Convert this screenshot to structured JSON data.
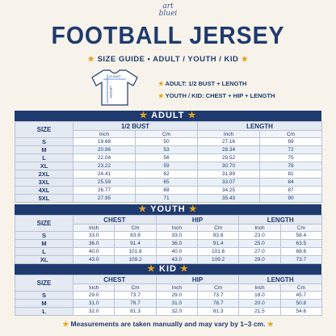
{
  "header": {
    "logo_top": "art",
    "logo_bottom": "bluei",
    "title": "FOOTBALL JERSEY",
    "subtitle": "SIZE GUIDE • ADULT / YOUTH / KID"
  },
  "diagram": {
    "bust_label": "1/2 BUST",
    "length_label": "LENGTH",
    "notes": [
      "ADULT: 1/2 BUST + LENGTH",
      "YOUTH / KID: CHEST + HIP + LENGTH"
    ]
  },
  "tables": [
    {
      "title": "ADULT",
      "size_header": "SIZE",
      "groups": [
        "1/2 BUST",
        "LENGTH"
      ],
      "units": [
        "Inch",
        "Cm"
      ],
      "rows": [
        [
          "S",
          "19.68",
          "50",
          "27.16",
          "69"
        ],
        [
          "M",
          "20.86",
          "53",
          "28.34",
          "72"
        ],
        [
          "L",
          "22.04",
          "56",
          "29.52",
          "75"
        ],
        [
          "XL",
          "23.22",
          "59",
          "30.70",
          "78"
        ],
        [
          "2XL",
          "24.41",
          "62",
          "31.89",
          "81"
        ],
        [
          "3XL",
          "25.59",
          "65",
          "33.07",
          "84"
        ],
        [
          "4XL",
          "26.77",
          "68",
          "34.25",
          "87"
        ],
        [
          "5XL",
          "27.95",
          "71",
          "35.43",
          "90"
        ]
      ]
    },
    {
      "title": "YOUTH",
      "size_header": "SIZE",
      "groups": [
        "CHEST",
        "HIP",
        "LENGTH"
      ],
      "units": [
        "Inch",
        "Cm"
      ],
      "rows": [
        [
          "S",
          "33.0",
          "83.8",
          "33.0",
          "83.8",
          "23.0",
          "58.4"
        ],
        [
          "M",
          "36.0",
          "91.4",
          "36.0",
          "91.4",
          "25.0",
          "63.5"
        ],
        [
          "L",
          "40.0",
          "101.6",
          "40.0",
          "101.6",
          "27.0",
          "68.6"
        ],
        [
          "XL",
          "43.0",
          "109.2",
          "43.0",
          "109.2",
          "29.0",
          "73.7"
        ]
      ]
    },
    {
      "title": "KID",
      "size_header": "SIZE",
      "groups": [
        "CHEST",
        "HIP",
        "LENGTH"
      ],
      "units": [
        "Inch",
        "Cm"
      ],
      "rows": [
        [
          "S",
          "29.0",
          "73.7",
          "29.0",
          "73.7",
          "18.0",
          "45.7"
        ],
        [
          "M",
          "31.0",
          "78.7",
          "31.0",
          "78.7",
          "20.0",
          "50.8"
        ],
        [
          "L",
          "32.0",
          "81.3",
          "32.0",
          "81.3",
          "21.5",
          "54.6"
        ]
      ]
    }
  ],
  "footer": "Measurements are taken manually and may vary by 1–3 cm."
}
